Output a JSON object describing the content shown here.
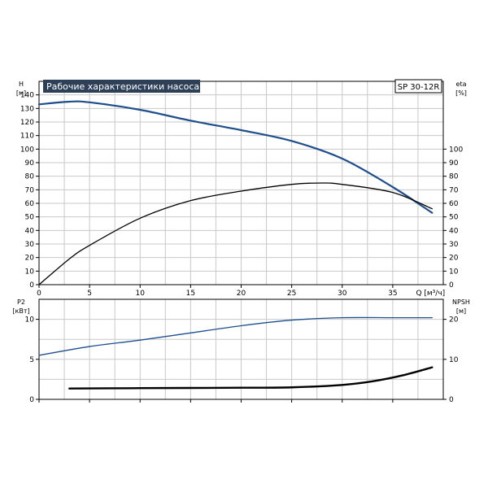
{
  "chart_data": [
    {
      "type": "line",
      "title": "Рабочие характеристики насоса",
      "model": "SP 30-12R",
      "xlabel": "Q [м³/ч]",
      "xlim": [
        0,
        40
      ],
      "xticks": [
        0,
        5,
        10,
        15,
        20,
        25,
        30,
        35
      ],
      "ylabel_left": [
        "H",
        "[м]"
      ],
      "ylim_left": [
        0,
        150
      ],
      "yticks_left": [
        0,
        10,
        20,
        30,
        40,
        50,
        60,
        70,
        80,
        90,
        100,
        110,
        120,
        130,
        140
      ],
      "ylabel_right": [
        "eta",
        "[%]"
      ],
      "ylim_right": [
        0,
        150
      ],
      "yticks_right": [
        0,
        10,
        20,
        30,
        40,
        50,
        60,
        70,
        80,
        90,
        100
      ],
      "grid": true,
      "series": [
        {
          "axis": "left",
          "color": "#1f4e8c",
          "x": [
            0,
            3,
            5,
            10,
            15,
            20,
            25,
            30,
            35,
            38.9
          ],
          "values": [
            133,
            135,
            134.5,
            129,
            121,
            114,
            106,
            93,
            72,
            53
          ]
        },
        {
          "axis": "right",
          "color": "#000000",
          "x": [
            0,
            3,
            5,
            10,
            15,
            20,
            25,
            28,
            30,
            35,
            38.9
          ],
          "values": [
            0,
            19,
            29,
            49,
            62,
            69,
            74,
            75,
            74,
            68,
            56
          ]
        }
      ]
    },
    {
      "type": "line",
      "xlim": [
        0,
        40
      ],
      "xticks": [
        0,
        5,
        10,
        15,
        20,
        25,
        30,
        35
      ],
      "ylabel_left": [
        "P2",
        "[кВт]"
      ],
      "ylim_left": [
        0,
        12.5
      ],
      "yticks_left": [
        0,
        5,
        10
      ],
      "ylabel_right": [
        "NPSH",
        "[м]"
      ],
      "ylim_right": [
        0,
        25
      ],
      "yticks_right": [
        0,
        10,
        20
      ],
      "grid": true,
      "series": [
        {
          "axis": "left",
          "color": "#1f4e8c",
          "x": [
            0,
            5,
            10,
            15,
            20,
            25,
            30,
            35,
            38.9
          ],
          "values": [
            5.5,
            6.6,
            7.4,
            8.3,
            9.2,
            9.9,
            10.2,
            10.2,
            10.2
          ]
        },
        {
          "axis": "right",
          "color": "#000000",
          "x": [
            3,
            10,
            20,
            25,
            30,
            33,
            36,
            38.9
          ],
          "values": [
            2.7,
            2.8,
            2.9,
            3.0,
            3.6,
            4.5,
            6.0,
            8.0
          ]
        }
      ]
    }
  ]
}
